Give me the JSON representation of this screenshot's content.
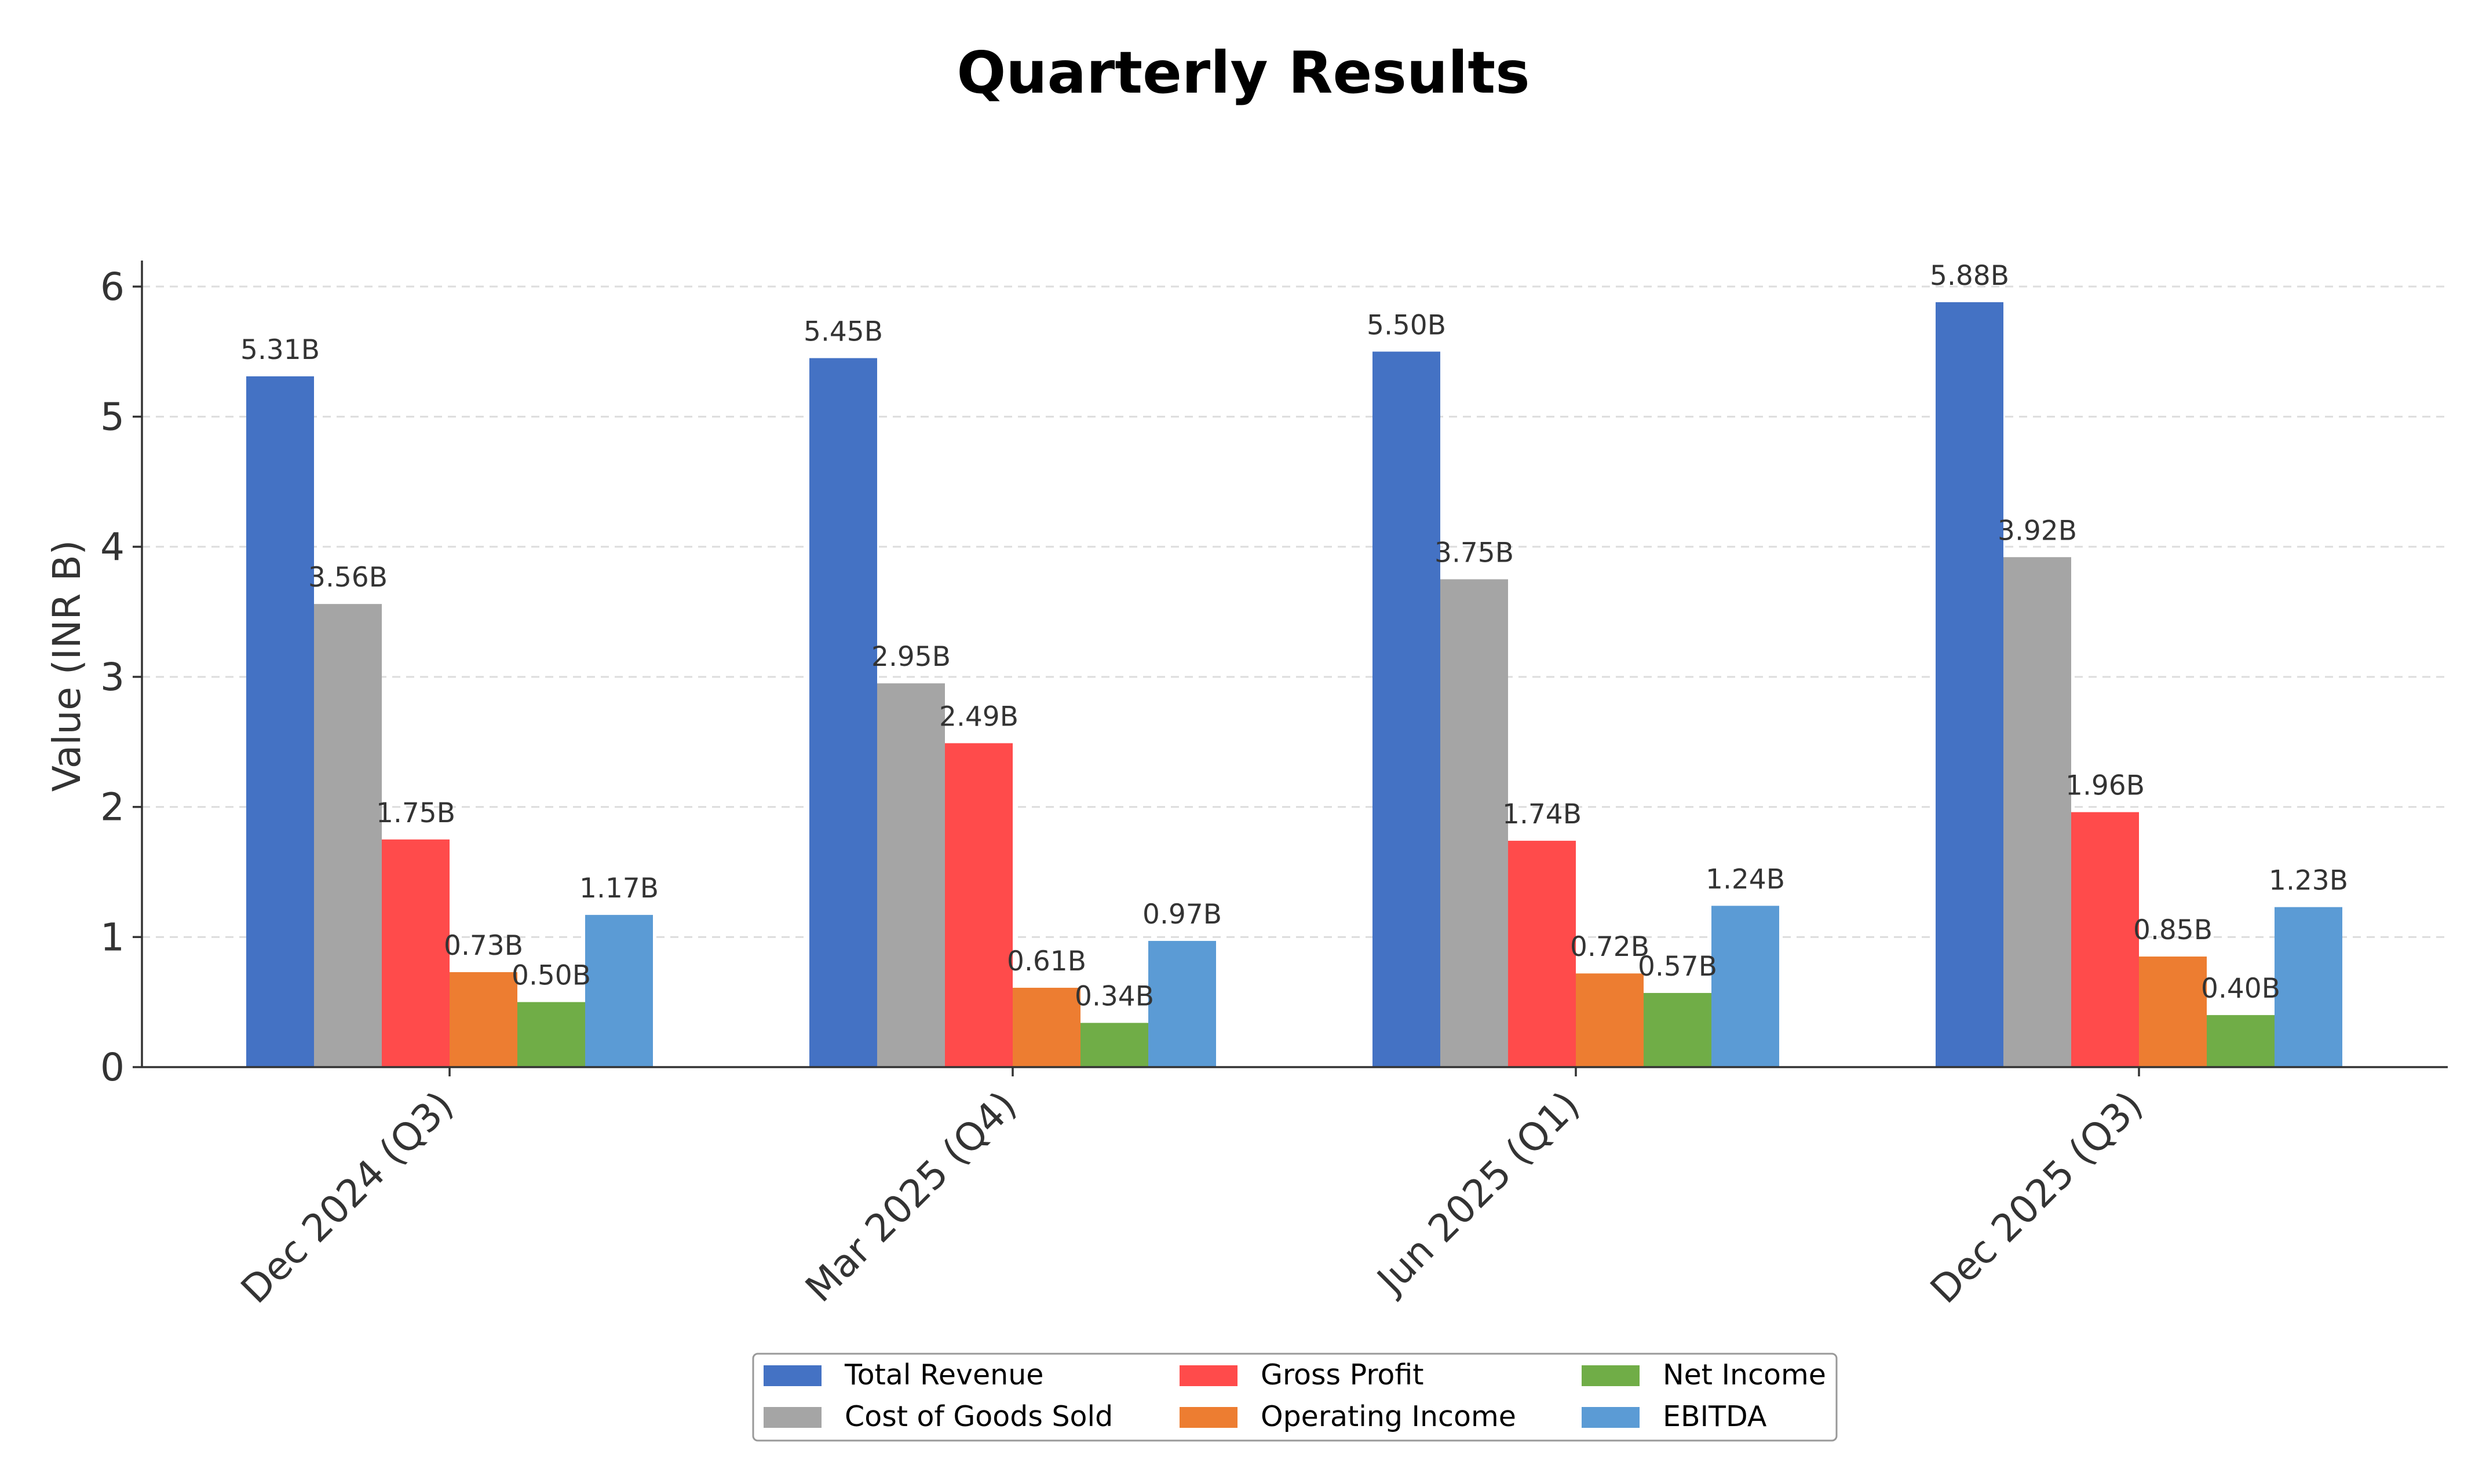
{
  "chart_data": {
    "type": "bar",
    "title": "Quarterly Results",
    "xlabel": "",
    "ylabel": "Value (INR B)",
    "ylim": [
      0,
      6.2
    ],
    "yticks": [
      "0",
      "1",
      "2",
      "3",
      "4",
      "5",
      "6"
    ],
    "grid": "horizontal dashed",
    "legend_position": "bottom-center",
    "categories": [
      "Dec 2024 (Q3)",
      "Mar 2025 (Q4)",
      "Jun 2025 (Q1)",
      "Dec 2025 (Q3)"
    ],
    "series": [
      {
        "name": "Total Revenue",
        "color": "#4472C4",
        "values": [
          5.31,
          5.45,
          5.5,
          5.88
        ],
        "labels": [
          "5.31B",
          "5.45B",
          "5.50B",
          "5.88B"
        ]
      },
      {
        "name": "Cost of Goods Sold",
        "color": "#A5A5A5",
        "values": [
          3.56,
          2.95,
          3.75,
          3.92
        ],
        "labels": [
          "3.56B",
          "2.95B",
          "3.75B",
          "3.92B"
        ]
      },
      {
        "name": "Gross Profit",
        "color": "#FF4B4B",
        "values": [
          1.75,
          2.49,
          1.74,
          1.96
        ],
        "labels": [
          "1.75B",
          "2.49B",
          "1.74B",
          "1.96B"
        ]
      },
      {
        "name": "Operating Income",
        "color": "#ED7D31",
        "values": [
          0.73,
          0.61,
          0.72,
          0.85
        ],
        "labels": [
          "0.73B",
          "0.61B",
          "0.72B",
          "0.85B"
        ]
      },
      {
        "name": "Net Income",
        "color": "#70AD47",
        "values": [
          0.5,
          0.34,
          0.57,
          0.4
        ],
        "labels": [
          "0.50B",
          "0.34B",
          "0.57B",
          "0.40B"
        ]
      },
      {
        "name": "EBITDA",
        "color": "#5B9BD5",
        "values": [
          1.17,
          0.97,
          1.24,
          1.23
        ],
        "labels": [
          "1.17B",
          "0.97B",
          "1.24B",
          "1.23B"
        ]
      }
    ]
  }
}
